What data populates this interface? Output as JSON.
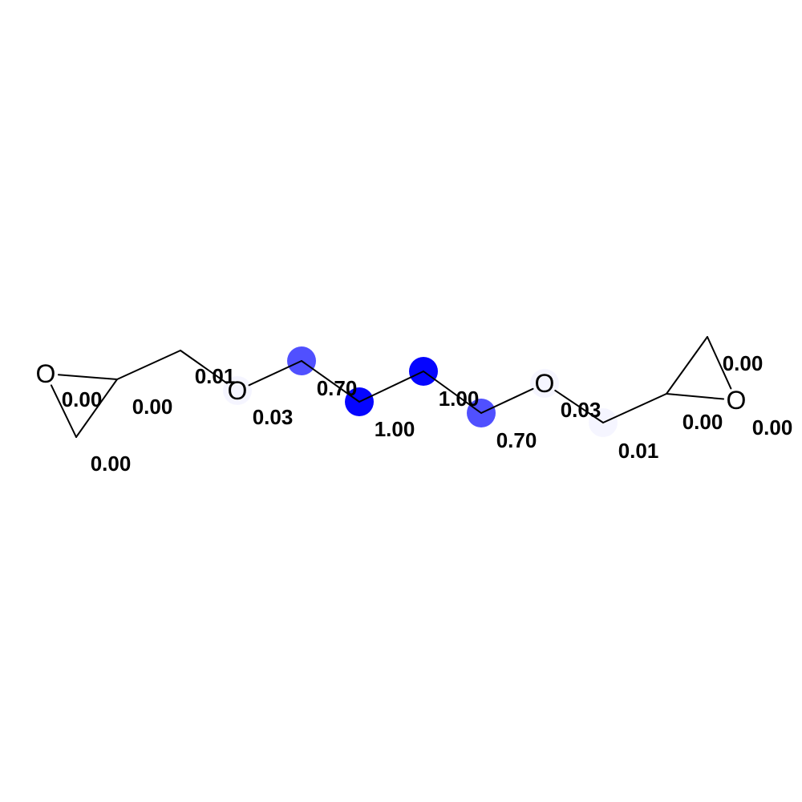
{
  "molecule": {
    "atoms": [
      {
        "id": "a0",
        "symbol": "O",
        "score": "0.00",
        "weight": 0.0
      },
      {
        "id": "a1",
        "symbol": "",
        "score": "0.00",
        "weight": 0.0
      },
      {
        "id": "a2",
        "symbol": "",
        "score": "0.00",
        "weight": 0.0
      },
      {
        "id": "a3",
        "symbol": "",
        "score": "0.00",
        "weight": 0.0
      },
      {
        "id": "a4",
        "symbol": "",
        "score": "0.01",
        "weight": 0.01
      },
      {
        "id": "a5",
        "symbol": "O",
        "score": "0.03",
        "weight": 0.03
      },
      {
        "id": "a6",
        "symbol": "",
        "score": "0.70",
        "weight": 0.7
      },
      {
        "id": "a7",
        "symbol": "",
        "score": "1.00",
        "weight": 1.0
      },
      {
        "id": "a8",
        "symbol": "",
        "score": "1.00",
        "weight": 1.0
      },
      {
        "id": "a9",
        "symbol": "",
        "score": "0.70",
        "weight": 0.7
      },
      {
        "id": "a10",
        "symbol": "O",
        "score": "0.03",
        "weight": 0.03
      },
      {
        "id": "a11",
        "symbol": "",
        "score": "0.01",
        "weight": 0.01
      },
      {
        "id": "a12",
        "symbol": "",
        "score": "0.00",
        "weight": 0.0
      },
      {
        "id": "a13",
        "symbol": "",
        "score": "0.00",
        "weight": 0.0
      },
      {
        "id": "a14",
        "symbol": "O",
        "score": "0.00",
        "weight": 0.0
      }
    ],
    "bonds": [
      [
        "a0",
        "a1"
      ],
      [
        "a0",
        "a2"
      ],
      [
        "a1",
        "a2"
      ],
      [
        "a1",
        "a3"
      ],
      [
        "a3",
        "a4"
      ],
      [
        "a4",
        "a5"
      ],
      [
        "a5",
        "a6"
      ],
      [
        "a6",
        "a7"
      ],
      [
        "a7",
        "a8"
      ],
      [
        "a8",
        "a9"
      ],
      [
        "a9",
        "a10"
      ],
      [
        "a10",
        "a11"
      ],
      [
        "a11",
        "a12"
      ],
      [
        "a12",
        "a13"
      ],
      [
        "a13",
        "a14"
      ],
      [
        "a12",
        "a14"
      ]
    ],
    "highlight_color": "#0000ff"
  }
}
